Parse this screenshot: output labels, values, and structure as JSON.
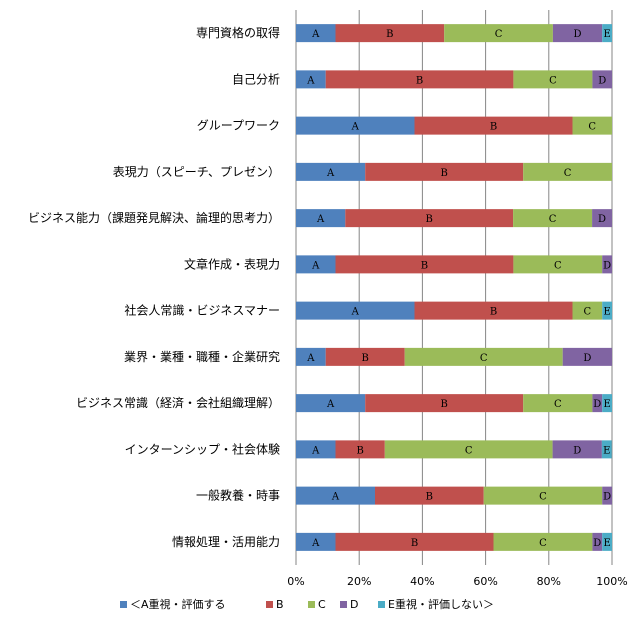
{
  "chart_data": {
    "type": "bar",
    "orientation": "horizontal",
    "stacked": "percent",
    "categories": [
      "専門資格の取得",
      "自己分析",
      "グループワーク",
      "表現力（スピーチ、プレゼン）",
      "ビジネス能力（課題発見解決、論理的思考力）",
      "文章作成・表現力",
      "社会人常識・ビジネスマナー",
      "業界・業種・職種・企業研究",
      "ビジネス常識（経済・会社組織理解）",
      "インターンシップ・社会体験",
      "一般教養・時事",
      "情報処理・活用能力"
    ],
    "series": [
      {
        "name": "＜A重視・評価する",
        "short": "A",
        "color": "#4f81bd",
        "values": [
          12.5,
          9.4,
          37.5,
          21.9,
          15.6,
          12.5,
          37.5,
          9.4,
          21.9,
          12.5,
          25.0,
          12.5
        ]
      },
      {
        "name": "B",
        "short": "B",
        "color": "#c0504d",
        "values": [
          34.4,
          59.4,
          50.0,
          50.0,
          53.1,
          56.3,
          50.0,
          25.0,
          50.0,
          15.6,
          34.4,
          50.0
        ]
      },
      {
        "name": "C",
        "short": "C",
        "color": "#9bbb59",
        "values": [
          34.4,
          25.0,
          12.5,
          28.1,
          25.0,
          28.1,
          9.4,
          50.0,
          21.9,
          53.1,
          37.5,
          31.3
        ]
      },
      {
        "name": "D",
        "short": "D",
        "color": "#8064a2",
        "values": [
          15.6,
          6.2,
          0,
          0,
          6.3,
          3.1,
          0,
          15.6,
          3.1,
          15.6,
          3.1,
          3.1
        ]
      },
      {
        "name": "E重視・評価しない＞",
        "short": "E",
        "color": "#4bacc6",
        "values": [
          3.1,
          0,
          0,
          0,
          0,
          0,
          3.1,
          0,
          3.1,
          3.1,
          0,
          3.1
        ]
      }
    ],
    "xlim": [
      0,
      100
    ],
    "xticks": [
      "0%",
      "20%",
      "40%",
      "60%",
      "80%",
      "100%"
    ],
    "grid": "vertical",
    "legend": "bottom",
    "title": "",
    "xlabel": "",
    "ylabel": ""
  }
}
